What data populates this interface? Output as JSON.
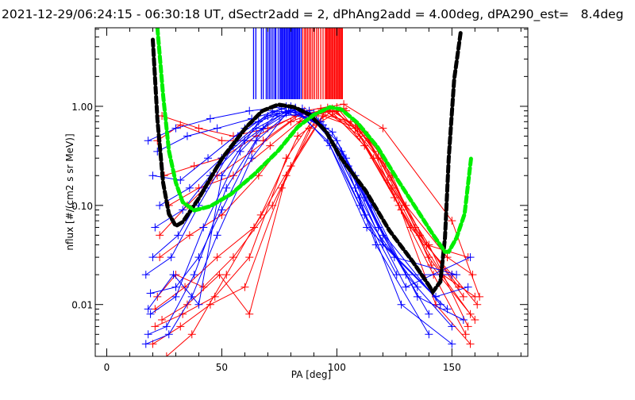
{
  "chart_data": {
    "type": "line",
    "title": "2021-12-29/06:24:15 - 06:30:18 UT, dSectr2add = 2, dPhAng2add = 4.00deg, dPA290_est=   8.4deg",
    "xlabel": "PA [deg]",
    "ylabel": "nflux [#/(cm2 s sr MeV)]",
    "xlim": [
      -5,
      183
    ],
    "ylim": [
      0.003,
      6.2
    ],
    "yscale": "log",
    "x_ticks": [
      0,
      50,
      100,
      150
    ],
    "x_tick_labels": [
      "0",
      "50",
      "100",
      "150"
    ],
    "y_ticks": [
      0.01,
      0.1,
      1.0
    ],
    "y_tick_labels": [
      "0.01",
      "0.10",
      "1.00"
    ],
    "grid": false,
    "colors": {
      "blue": "#0000ff",
      "red": "#ff0000",
      "black": "#000000",
      "green": "#00ee00"
    },
    "pa_ticks": {
      "y_range": [
        1.18,
        6.2
      ],
      "blue": [
        63.8,
        64.8,
        67.2,
        68,
        69.3,
        70,
        70.7,
        71.4,
        72.2,
        73,
        73.5,
        74.5,
        75.3,
        75.8,
        76.3,
        76.8,
        77.3,
        77.8,
        78.3,
        78.8,
        79.3,
        79.8,
        80.3,
        80.8,
        81.3,
        81.8,
        82.3,
        82.8,
        83.3,
        83.8,
        84.5
      ],
      "red": [
        85.2,
        86,
        86.6,
        87.3,
        88,
        88.7,
        89.5,
        90.3,
        91.2,
        92,
        93,
        94,
        95,
        95.5,
        96,
        96.5,
        97,
        97.5,
        98,
        98.5,
        99,
        99.5,
        100,
        100.5,
        101,
        101.5,
        102,
        102.4
      ]
    },
    "series": [
      {
        "name": "fit-black",
        "color": "black",
        "dashed": true,
        "x": [
          20,
          22,
          24.5,
          27,
          30,
          33,
          40,
          50,
          60.7,
          67.6,
          74.5,
          81.4,
          88.3,
          95.2,
          102,
          112.4,
          122.8,
          133,
          140,
          141.7,
          145,
          147,
          148.6,
          151,
          153.8
        ],
        "y": [
          4.7,
          0.74,
          0.17,
          0.082,
          0.062,
          0.068,
          0.118,
          0.296,
          0.62,
          0.9,
          1.04,
          0.98,
          0.82,
          0.56,
          0.296,
          0.142,
          0.056,
          0.027,
          0.0156,
          0.0134,
          0.017,
          0.047,
          0.296,
          1.87,
          5.6
        ]
      },
      {
        "name": "fit-green",
        "color": "green",
        "dashed": true,
        "x": [
          22,
          24.5,
          27,
          30,
          33,
          38,
          45,
          54,
          64,
          74.5,
          83,
          90,
          97,
          102,
          109,
          117.6,
          126,
          135,
          141.7,
          147,
          148.6,
          152,
          155.5,
          158.3
        ],
        "y": [
          6.2,
          1.29,
          0.356,
          0.17,
          0.108,
          0.089,
          0.098,
          0.13,
          0.205,
          0.356,
          0.62,
          0.82,
          0.98,
          0.93,
          0.68,
          0.39,
          0.187,
          0.089,
          0.051,
          0.034,
          0.034,
          0.047,
          0.082,
          0.296
        ]
      }
    ],
    "blue_traces": [
      [
        [
          18,
          0.45
        ],
        [
          30,
          0.6
        ],
        [
          45,
          0.75
        ],
        [
          62,
          0.9
        ],
        [
          78,
          1.0
        ],
        [
          95,
          0.6
        ],
        [
          112,
          0.12
        ],
        [
          130,
          0.02
        ],
        [
          150,
          0.006
        ]
      ],
      [
        [
          19,
          0.008
        ],
        [
          30,
          0.012
        ],
        [
          42,
          0.06
        ],
        [
          58,
          0.35
        ],
        [
          74,
          0.85
        ],
        [
          88,
          0.9
        ],
        [
          104,
          0.3
        ],
        [
          120,
          0.05
        ],
        [
          140,
          0.008
        ]
      ],
      [
        [
          17,
          0.02
        ],
        [
          28,
          0.03
        ],
        [
          40,
          0.1
        ],
        [
          55,
          0.4
        ],
        [
          70,
          0.8
        ],
        [
          85,
          0.95
        ],
        [
          100,
          0.45
        ],
        [
          118,
          0.06
        ],
        [
          145,
          0.01
        ]
      ],
      [
        [
          20,
          0.2
        ],
        [
          32,
          0.18
        ],
        [
          44,
          0.3
        ],
        [
          60,
          0.6
        ],
        [
          76,
          0.95
        ],
        [
          92,
          0.7
        ],
        [
          108,
          0.2
        ],
        [
          125,
          0.03
        ],
        [
          152,
          0.02
        ]
      ],
      [
        [
          18,
          0.005
        ],
        [
          26,
          0.006
        ],
        [
          38,
          0.02
        ],
        [
          52,
          0.15
        ],
        [
          68,
          0.6
        ],
        [
          82,
          0.95
        ],
        [
          98,
          0.55
        ],
        [
          115,
          0.1
        ],
        [
          135,
          0.012
        ],
        [
          155,
          0.007
        ]
      ],
      [
        [
          21,
          0.06
        ],
        [
          33,
          0.09
        ],
        [
          45,
          0.2
        ],
        [
          60,
          0.45
        ],
        [
          75,
          0.8
        ],
        [
          90,
          0.85
        ],
        [
          105,
          0.25
        ],
        [
          120,
          0.04
        ],
        [
          148,
          0.009
        ]
      ],
      [
        [
          19,
          0.013
        ],
        [
          30,
          0.015
        ],
        [
          40,
          0.03
        ],
        [
          50,
          0.09
        ],
        [
          65,
          0.45
        ],
        [
          80,
          0.9
        ],
        [
          95,
          0.6
        ],
        [
          110,
          0.12
        ],
        [
          130,
          0.015
        ],
        [
          158,
          0.03
        ]
      ],
      [
        [
          17,
          0.004
        ],
        [
          27,
          0.005
        ],
        [
          37,
          0.012
        ],
        [
          48,
          0.05
        ],
        [
          63,
          0.3
        ],
        [
          78,
          0.85
        ],
        [
          93,
          0.7
        ],
        [
          108,
          0.15
        ],
        [
          128,
          0.01
        ],
        [
          150,
          0.004
        ]
      ],
      [
        [
          22,
          0.35
        ],
        [
          35,
          0.5
        ],
        [
          48,
          0.6
        ],
        [
          63,
          0.75
        ],
        [
          80,
          1.0
        ],
        [
          96,
          0.45
        ],
        [
          112,
          0.08
        ],
        [
          135,
          0.015
        ]
      ],
      [
        [
          20,
          0.03
        ],
        [
          31,
          0.05
        ],
        [
          43,
          0.15
        ],
        [
          57,
          0.5
        ],
        [
          72,
          0.9
        ],
        [
          87,
          0.85
        ],
        [
          102,
          0.35
        ],
        [
          117,
          0.04
        ],
        [
          140,
          0.005
        ]
      ],
      [
        [
          18,
          0.009
        ],
        [
          29,
          0.02
        ],
        [
          40,
          0.01
        ],
        [
          50,
          0.2
        ],
        [
          66,
          0.7
        ],
        [
          82,
          0.97
        ],
        [
          97,
          0.4
        ],
        [
          113,
          0.06
        ],
        [
          143,
          0.012
        ],
        [
          157,
          0.015
        ]
      ],
      [
        [
          23,
          0.1
        ],
        [
          36,
          0.15
        ],
        [
          50,
          0.3
        ],
        [
          65,
          0.6
        ],
        [
          79,
          0.9
        ],
        [
          94,
          0.65
        ],
        [
          110,
          0.1
        ],
        [
          126,
          0.02
        ],
        [
          150,
          0.02
        ]
      ]
    ],
    "red_traces": [
      [
        [
          21,
          0.006
        ],
        [
          33,
          0.008
        ],
        [
          47,
          0.012
        ],
        [
          62,
          0.03
        ],
        [
          78,
          0.3
        ],
        [
          93,
          0.95
        ],
        [
          108,
          0.6
        ],
        [
          124,
          0.15
        ],
        [
          140,
          0.03
        ],
        [
          158,
          0.008
        ]
      ],
      [
        [
          23,
          0.05
        ],
        [
          35,
          0.1
        ],
        [
          48,
          0.2
        ],
        [
          63,
          0.35
        ],
        [
          80,
          0.7
        ],
        [
          96,
          0.97
        ],
        [
          112,
          0.4
        ],
        [
          128,
          0.09
        ],
        [
          146,
          0.02
        ],
        [
          160,
          0.012
        ]
      ],
      [
        [
          20,
          0.004
        ],
        [
          32,
          0.006
        ],
        [
          45,
          0.01
        ],
        [
          60,
          0.015
        ],
        [
          76,
          0.15
        ],
        [
          92,
          0.85
        ],
        [
          106,
          0.7
        ],
        [
          122,
          0.18
        ],
        [
          140,
          0.04
        ],
        [
          157,
          0.006
        ]
      ],
      [
        [
          24,
          0.8
        ],
        [
          40,
          0.6
        ],
        [
          55,
          0.5
        ],
        [
          70,
          0.6
        ],
        [
          85,
          0.85
        ],
        [
          100,
          0.9
        ],
        [
          116,
          0.3
        ],
        [
          132,
          0.06
        ],
        [
          150,
          0.02
        ],
        [
          161,
          0.01
        ]
      ],
      [
        [
          22,
          0.012
        ],
        [
          30,
          0.02
        ],
        [
          42,
          0.015
        ],
        [
          55,
          0.03
        ],
        [
          72,
          0.1
        ],
        [
          88,
          0.6
        ],
        [
          103,
          0.95
        ],
        [
          118,
          0.35
        ],
        [
          134,
          0.06
        ],
        [
          155,
          0.012
        ]
      ],
      [
        [
          25,
          0.2
        ],
        [
          38,
          0.25
        ],
        [
          50,
          0.3
        ],
        [
          65,
          0.5
        ],
        [
          82,
          0.8
        ],
        [
          98,
          0.95
        ],
        [
          114,
          0.45
        ],
        [
          130,
          0.1
        ],
        [
          148,
          0.03
        ],
        [
          159,
          0.02
        ]
      ],
      [
        [
          21,
          0.009
        ],
        [
          34,
          0.015
        ],
        [
          48,
          0.03
        ],
        [
          64,
          0.06
        ],
        [
          80,
          0.25
        ],
        [
          95,
          0.9
        ],
        [
          110,
          0.5
        ],
        [
          125,
          0.12
        ],
        [
          142,
          0.02
        ],
        [
          156,
          0.005
        ]
      ],
      [
        [
          26,
          0.003
        ],
        [
          37,
          0.005
        ],
        [
          52,
          0.02
        ],
        [
          67,
          0.08
        ],
        [
          83,
          0.5
        ],
        [
          98,
          0.9
        ],
        [
          112,
          0.55
        ],
        [
          127,
          0.1
        ],
        [
          143,
          0.01
        ],
        [
          158,
          0.004
        ]
      ],
      [
        [
          23,
          0.03
        ],
        [
          36,
          0.05
        ],
        [
          50,
          0.08
        ],
        [
          66,
          0.2
        ],
        [
          84,
          0.7
        ],
        [
          100,
          0.98
        ],
        [
          118,
          0.3
        ],
        [
          136,
          0.05
        ],
        [
          153,
          0.015
        ]
      ],
      [
        [
          22,
          0.45
        ],
        [
          32,
          0.65
        ],
        [
          50,
          0.45
        ],
        [
          68,
          0.45
        ],
        [
          86,
          0.9
        ],
        [
          103,
          1.05
        ],
        [
          120,
          0.6
        ],
        [
          150,
          0.07
        ],
        [
          162,
          0.012
        ]
      ],
      [
        [
          24,
          0.007
        ],
        [
          35,
          0.01
        ],
        [
          49,
          0.02
        ],
        [
          62,
          0.008
        ],
        [
          78,
          0.2
        ],
        [
          94,
          0.8
        ],
        [
          109,
          0.6
        ],
        [
          124,
          0.2
        ],
        [
          141,
          0.025
        ],
        [
          160,
          0.007
        ]
      ],
      [
        [
          27,
          0.1
        ],
        [
          40,
          0.15
        ],
        [
          55,
          0.2
        ],
        [
          71,
          0.4
        ],
        [
          88,
          0.85
        ],
        [
          104,
          0.9
        ],
        [
          121,
          0.25
        ],
        [
          139,
          0.04
        ],
        [
          157,
          0.03
        ]
      ]
    ]
  }
}
